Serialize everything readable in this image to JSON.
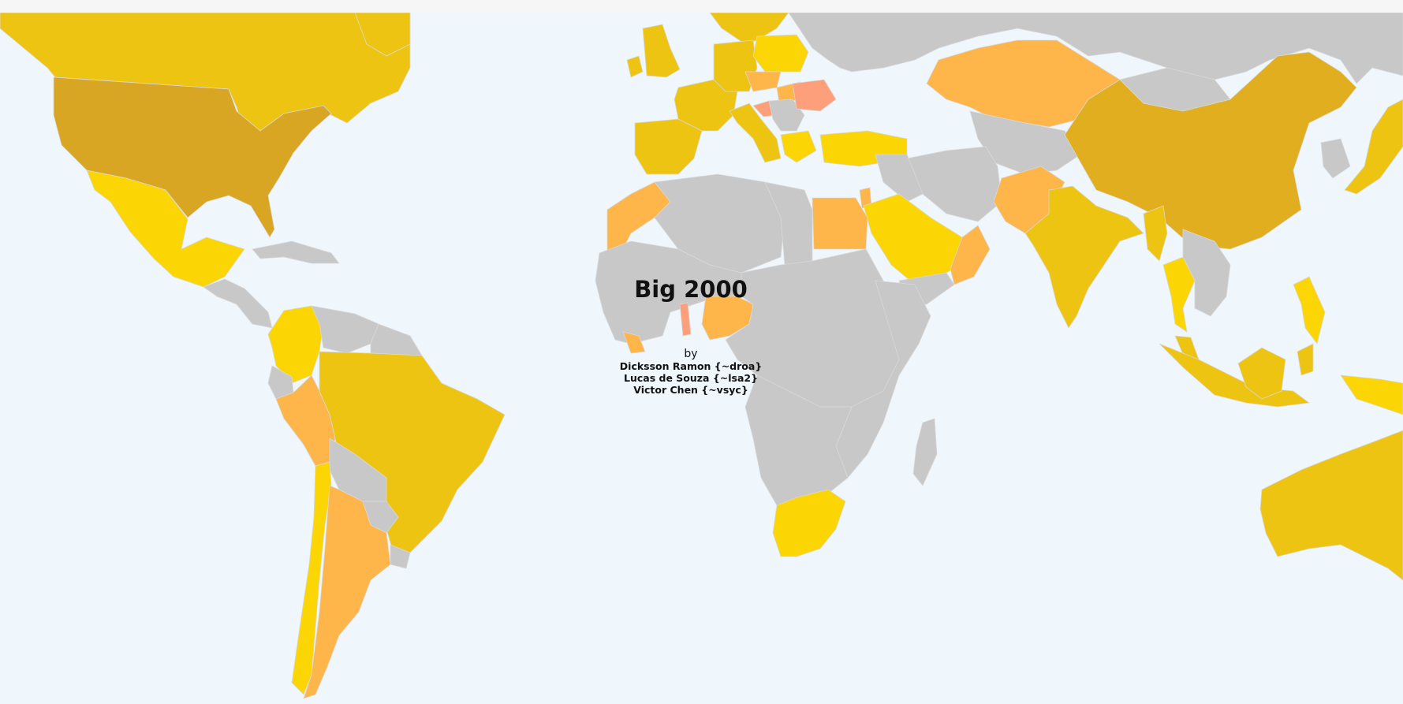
{
  "map": {
    "title": "Big 2000",
    "by_label": "by",
    "authors": [
      "Dicksson Ramon {~droa}",
      "Lucas de Souza {~lsa2}",
      "Victor Chen {~vsyc}"
    ]
  },
  "colors": {
    "ocean": "#eff7fc",
    "no_data": "#c8c8c8",
    "darkest": "#d8a623",
    "dark": "#e0ae1e",
    "mid": "#eec413",
    "light": "#fbd504",
    "orange": "#feb549",
    "salmon": "#fe9f7b",
    "border": "#d9d9d9"
  },
  "regions": [
    {
      "name": "Canada",
      "fill": "mid"
    },
    {
      "name": "United States",
      "fill": "darkest"
    },
    {
      "name": "Mexico",
      "fill": "light"
    },
    {
      "name": "Central America",
      "fill": "no_data"
    },
    {
      "name": "Caribbean",
      "fill": "no_data"
    },
    {
      "name": "Colombia",
      "fill": "light"
    },
    {
      "name": "Venezuela",
      "fill": "no_data"
    },
    {
      "name": "Guianas",
      "fill": "no_data"
    },
    {
      "name": "Ecuador",
      "fill": "no_data"
    },
    {
      "name": "Peru",
      "fill": "orange"
    },
    {
      "name": "Bolivia",
      "fill": "no_data"
    },
    {
      "name": "Brazil",
      "fill": "mid"
    },
    {
      "name": "Paraguay",
      "fill": "no_data"
    },
    {
      "name": "Uruguay",
      "fill": "no_data"
    },
    {
      "name": "Chile",
      "fill": "light"
    },
    {
      "name": "Argentina",
      "fill": "orange"
    },
    {
      "name": "Greenland",
      "fill": "mid"
    },
    {
      "name": "United Kingdom",
      "fill": "mid"
    },
    {
      "name": "Ireland",
      "fill": "mid"
    },
    {
      "name": "Iberia",
      "fill": "mid"
    },
    {
      "name": "France",
      "fill": "mid"
    },
    {
      "name": "Germany",
      "fill": "mid"
    },
    {
      "name": "Scandinavia",
      "fill": "mid"
    },
    {
      "name": "Poland",
      "fill": "light"
    },
    {
      "name": "Italy",
      "fill": "mid"
    },
    {
      "name": "Czechia",
      "fill": "orange"
    },
    {
      "name": "Hungary",
      "fill": "orange"
    },
    {
      "name": "Balkans",
      "fill": "no_data"
    },
    {
      "name": "Croatia",
      "fill": "salmon"
    },
    {
      "name": "Romania",
      "fill": "salmon"
    },
    {
      "name": "Greece",
      "fill": "light"
    },
    {
      "name": "Turkey",
      "fill": "light"
    },
    {
      "name": "Russia",
      "fill": "no_data"
    },
    {
      "name": "Kazakhstan",
      "fill": "orange"
    },
    {
      "name": "Central Asia",
      "fill": "no_data"
    },
    {
      "name": "Mongolia",
      "fill": "no_data"
    },
    {
      "name": "China",
      "fill": "dark"
    },
    {
      "name": "Korea",
      "fill": "no_data"
    },
    {
      "name": "Japan",
      "fill": "mid"
    },
    {
      "name": "Iran",
      "fill": "no_data"
    },
    {
      "name": "Iraq",
      "fill": "no_data"
    },
    {
      "name": "Israel",
      "fill": "orange"
    },
    {
      "name": "Saudi Arabia",
      "fill": "light"
    },
    {
      "name": "Yemen",
      "fill": "no_data"
    },
    {
      "name": "Oman",
      "fill": "orange"
    },
    {
      "name": "Pakistan",
      "fill": "orange"
    },
    {
      "name": "India",
      "fill": "mid"
    },
    {
      "name": "Myanmar",
      "fill": "mid"
    },
    {
      "name": "Thailand",
      "fill": "light"
    },
    {
      "name": "Indochina",
      "fill": "no_data"
    },
    {
      "name": "Malaysia",
      "fill": "mid"
    },
    {
      "name": "Indonesia",
      "fill": "mid"
    },
    {
      "name": "Philippines",
      "fill": "light"
    },
    {
      "name": "Papua New Guinea",
      "fill": "light"
    },
    {
      "name": "Australia",
      "fill": "mid"
    },
    {
      "name": "Morocco",
      "fill": "orange"
    },
    {
      "name": "Algeria",
      "fill": "no_data"
    },
    {
      "name": "Libya",
      "fill": "no_data"
    },
    {
      "name": "Egypt",
      "fill": "orange"
    },
    {
      "name": "West Africa",
      "fill": "no_data"
    },
    {
      "name": "Ghana",
      "fill": "salmon"
    },
    {
      "name": "Ivory Coast",
      "fill": "orange"
    },
    {
      "name": "Nigeria",
      "fill": "orange"
    },
    {
      "name": "Central Africa",
      "fill": "no_data"
    },
    {
      "name": "East Africa",
      "fill": "no_data"
    },
    {
      "name": "Southern Africa",
      "fill": "no_data"
    },
    {
      "name": "South Africa",
      "fill": "light"
    },
    {
      "name": "Madagascar",
      "fill": "no_data"
    }
  ]
}
